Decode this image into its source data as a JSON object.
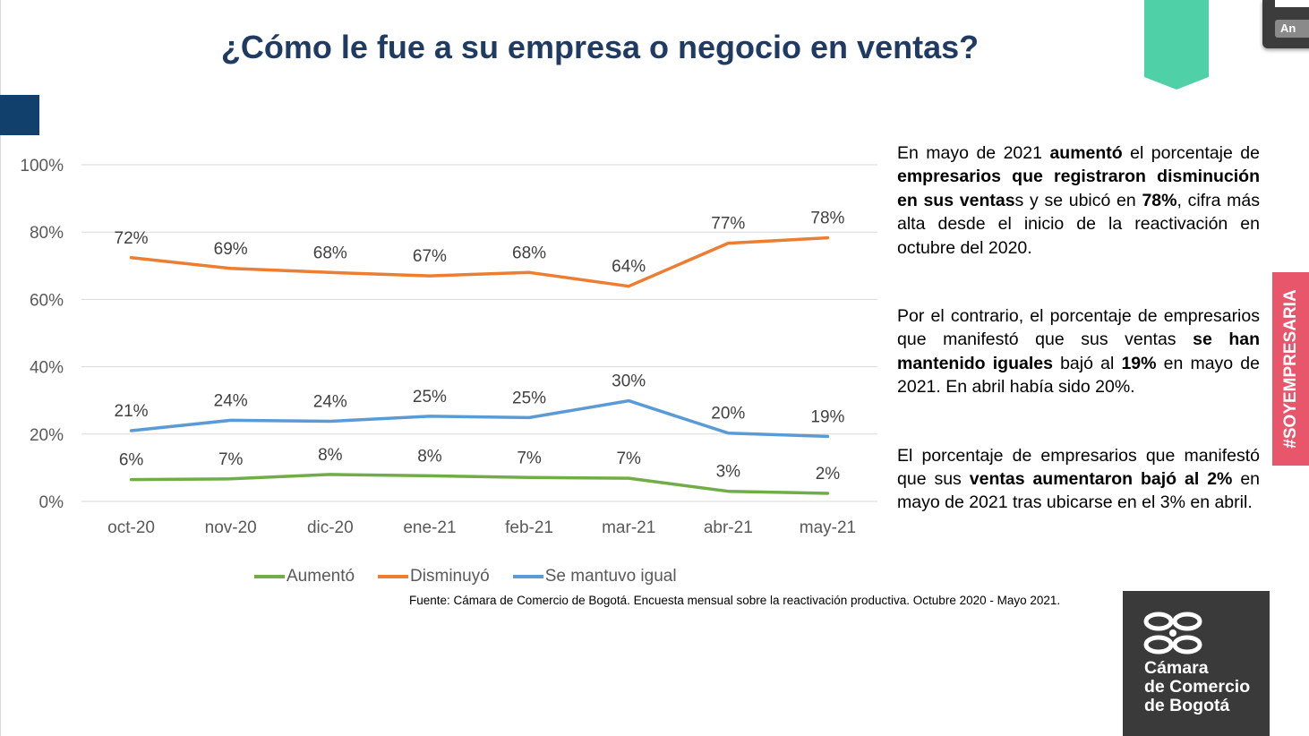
{
  "title": "¿Cómo le fue a su empresa o negocio en ventas?",
  "popup": {
    "button_label": "An"
  },
  "hashtag": "#SOYEMPRESARIA",
  "logo": {
    "line1": "Cámara",
    "line2": "de Comercio",
    "line3": "de Bogotá"
  },
  "source": "Fuente: Cámara de Comercio de Bogotá. Encuesta mensual sobre la reactivación productiva. Octubre 2020 - Mayo 2021.",
  "paragraphs": {
    "p1": {
      "s1": "En mayo de 2021 ",
      "b1": "aumentó",
      "s2": " el porcentaje de ",
      "b2": "empresarios que registraron disminución en sus ventas",
      "s3": "s y se ubicó en ",
      "b3": "78%",
      "s4": ", cifra más alta desde el inicio de la reactivación en octubre del 2020."
    },
    "p2": {
      "s1": "Por el contrario, el porcentaje de empresarios que manifestó que sus ventas ",
      "b1": "se han mantenido iguales",
      "s2": " bajó al ",
      "b2": "19%",
      "s3": " en mayo de 2021. En abril había sido 20%."
    },
    "p3": {
      "s1": "El porcentaje de empresarios que manifestó que sus ",
      "b1": "ventas aumentaron bajó al 2%",
      "s2": " en mayo de 2021 tras ubicarse en el 3% en abril."
    }
  },
  "chart_data": {
    "type": "line",
    "title": "",
    "xlabel": "",
    "ylabel": "",
    "categories": [
      "oct-20",
      "nov-20",
      "dic-20",
      "ene-21",
      "feb-21",
      "mar-21",
      "abr-21",
      "may-21"
    ],
    "ylim": [
      0,
      100
    ],
    "yticks": [
      0,
      20,
      40,
      60,
      80,
      100
    ],
    "ytick_labels": [
      "0%",
      "20%",
      "40%",
      "60%",
      "80%",
      "100%"
    ],
    "grid": true,
    "legend_position": "bottom",
    "series": [
      {
        "name": "Aumentó",
        "color": "#70ad47",
        "values": [
          6.5,
          6.7,
          8.0,
          7.6,
          7.1,
          6.9,
          3.0,
          2.4
        ],
        "labels": [
          "6%",
          "7%",
          "8%",
          "8%",
          "7%",
          "7%",
          "3%",
          "2%"
        ]
      },
      {
        "name": "Disminuyó",
        "color": "#ed7d31",
        "values": [
          72.4,
          69.2,
          68.0,
          67.0,
          68.0,
          63.9,
          76.7,
          78.3
        ],
        "labels": [
          "72%",
          "69%",
          "68%",
          "67%",
          "68%",
          "64%",
          "77%",
          "78%"
        ]
      },
      {
        "name": "Se mantuvo igual",
        "color": "#5b9bd5",
        "values": [
          21.0,
          24.1,
          23.8,
          25.3,
          24.9,
          29.9,
          20.3,
          19.3
        ],
        "labels": [
          "21%",
          "24%",
          "24%",
          "25%",
          "25%",
          "30%",
          "20%",
          "19%"
        ]
      }
    ]
  }
}
